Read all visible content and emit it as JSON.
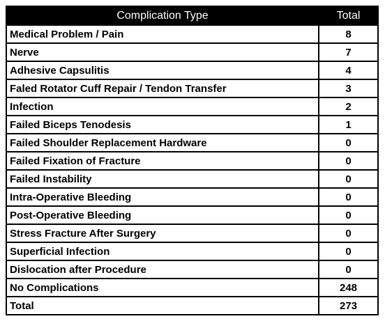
{
  "chart_data": {
    "type": "table",
    "columns": [
      "Complication Type",
      "Total"
    ],
    "rows": [
      {
        "label": "Medical Problem / Pain",
        "value": 8
      },
      {
        "label": "Nerve",
        "value": 7
      },
      {
        "label": "Adhesive Capsulitis",
        "value": 4
      },
      {
        "label": "Faled Rotator Cuff Repair / Tendon Transfer",
        "value": 3
      },
      {
        "label": "Infection",
        "value": 2
      },
      {
        "label": "Failed Biceps Tenodesis",
        "value": 1
      },
      {
        "label": "Failed Shoulder Replacement Hardware",
        "value": 0
      },
      {
        "label": "Failed Fixation of Fracture",
        "value": 0
      },
      {
        "label": "Failed Instability",
        "value": 0
      },
      {
        "label": "Intra-Operative Bleeding",
        "value": 0
      },
      {
        "label": "Post-Operative Bleeding",
        "value": 0
      },
      {
        "label": "Stress Fracture After Surgery",
        "value": 0
      },
      {
        "label": "Superficial Infection",
        "value": 0
      },
      {
        "label": "Dislocation after Procedure",
        "value": 0
      },
      {
        "label": "No Complications",
        "value": 248
      },
      {
        "label": "Total",
        "value": 273
      }
    ]
  }
}
